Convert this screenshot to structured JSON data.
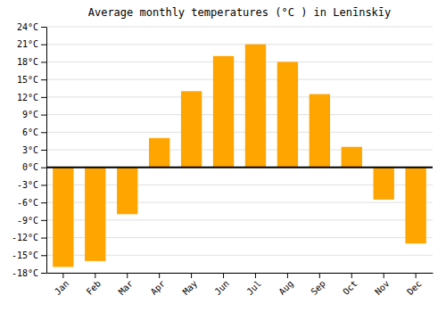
{
  "chart_data": {
    "type": "bar",
    "title": "Average monthly temperatures (°C ) in Lenīnskīy",
    "categories": [
      "Jan",
      "Feb",
      "Mar",
      "Apr",
      "May",
      "Jun",
      "Jul",
      "Aug",
      "Sep",
      "Oct",
      "Nov",
      "Dec"
    ],
    "values": [
      -17,
      -16,
      -8,
      5,
      13,
      19,
      21,
      18,
      12.5,
      3.5,
      -5.5,
      -13
    ],
    "color": "#FFA500",
    "ylim": [
      -18,
      24
    ],
    "yticks": [
      {
        "value": -18,
        "label": "-18°C"
      },
      {
        "value": -15,
        "label": "-15°C"
      },
      {
        "value": -12,
        "label": "-12°C"
      },
      {
        "value": -9,
        "label": "-9°C"
      },
      {
        "value": -6,
        "label": "-6°C"
      },
      {
        "value": -3,
        "label": "-3°C"
      },
      {
        "value": 0,
        "label": "0°C"
      },
      {
        "value": 3,
        "label": "3°C"
      },
      {
        "value": 6,
        "label": "6°C"
      },
      {
        "value": 9,
        "label": "9°C"
      },
      {
        "value": 12,
        "label": "12°C"
      },
      {
        "value": 15,
        "label": "15°C"
      },
      {
        "value": 18,
        "label": "18°C"
      },
      {
        "value": 21,
        "label": "21°C"
      },
      {
        "value": 24,
        "label": "24°C"
      }
    ],
    "grid": true
  }
}
